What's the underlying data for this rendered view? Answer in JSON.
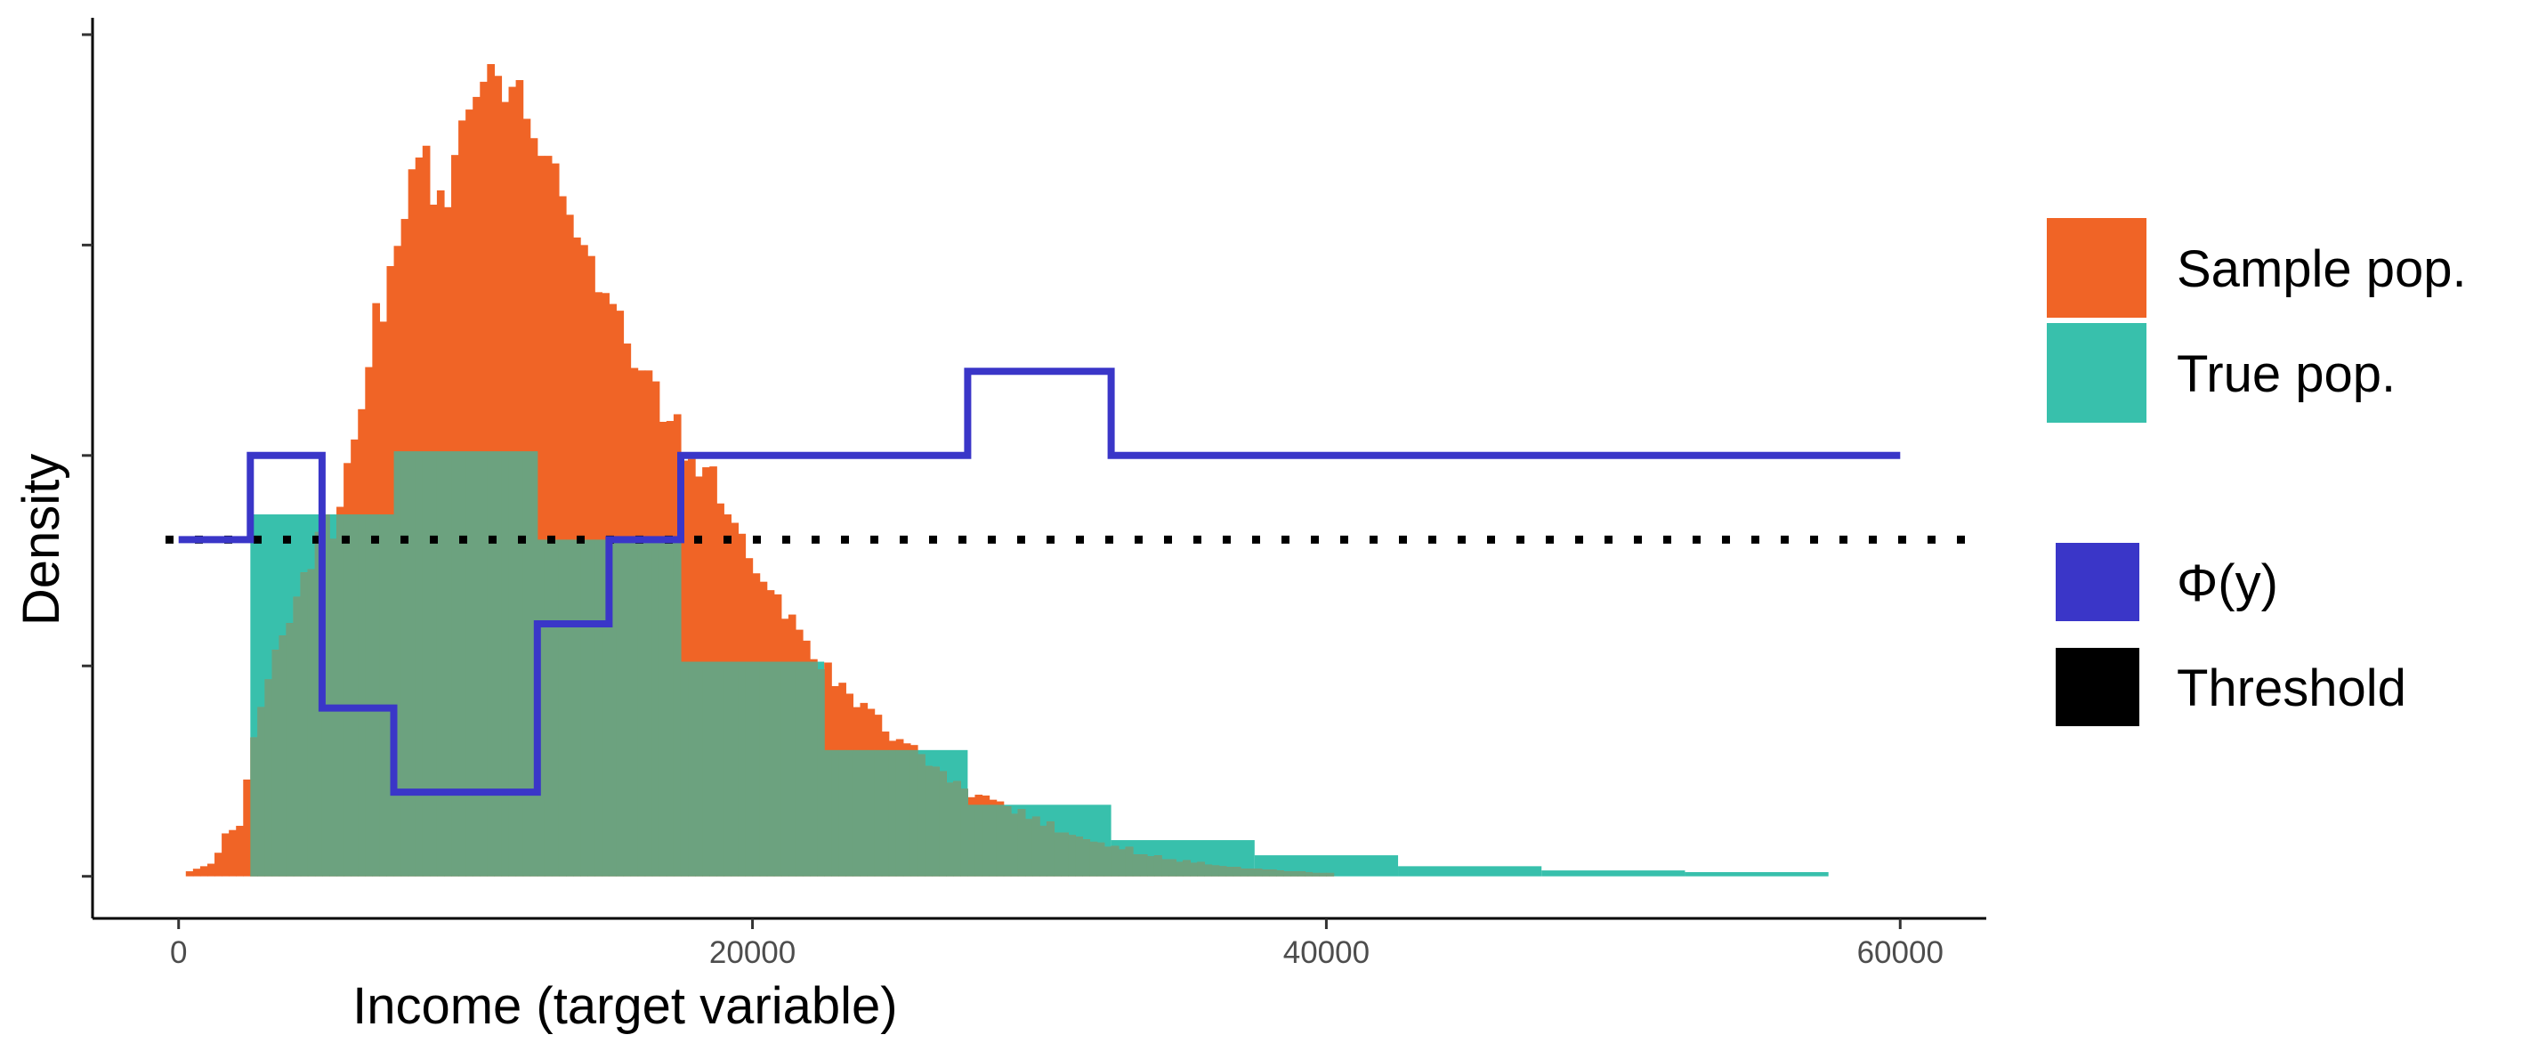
{
  "chart_data": {
    "type": "histogram",
    "xlabel": "Income (target variable)",
    "ylabel": "Density",
    "xlim": [
      -3000,
      63000
    ],
    "ylim": [
      -0.05,
      1.02
    ],
    "x_ticks": [
      0,
      20000,
      40000,
      60000
    ],
    "x_tick_labels": [
      "0",
      "20000",
      "40000",
      "60000"
    ],
    "y_ticks": [
      0,
      0.25,
      0.5,
      0.75,
      1.0
    ],
    "grid": false,
    "legend_position": "right",
    "colors": {
      "sample": "#f06426",
      "true": "#38c0ac",
      "phi": "#3a36c8",
      "threshold": "#000000"
    },
    "sample_hist": {
      "name": "Sample pop.",
      "bin_width": 250,
      "x_start": 250,
      "values": [
        0.006,
        0.009,
        0.012,
        0.015,
        0.028,
        0.051,
        0.055,
        0.06,
        0.115,
        0.165,
        0.201,
        0.234,
        0.269,
        0.286,
        0.301,
        0.332,
        0.361,
        0.365,
        0.409,
        0.43,
        0.401,
        0.439,
        0.491,
        0.519,
        0.555,
        0.605,
        0.681,
        0.659,
        0.725,
        0.749,
        0.781,
        0.84,
        0.854,
        0.868,
        0.798,
        0.815,
        0.795,
        0.857,
        0.898,
        0.911,
        0.926,
        0.944,
        0.965,
        0.951,
        0.92,
        0.938,
        0.946,
        0.9,
        0.877,
        0.856,
        0.856,
        0.847,
        0.808,
        0.786,
        0.759,
        0.75,
        0.737,
        0.694,
        0.693,
        0.68,
        0.672,
        0.633,
        0.604,
        0.601,
        0.601,
        0.588,
        0.54,
        0.541,
        0.549,
        0.494,
        0.496,
        0.475,
        0.486,
        0.487,
        0.443,
        0.43,
        0.42,
        0.407,
        0.378,
        0.36,
        0.35,
        0.34,
        0.335,
        0.306,
        0.311,
        0.293,
        0.28,
        0.258,
        0.246,
        0.254,
        0.226,
        0.23,
        0.217,
        0.201,
        0.206,
        0.199,
        0.192,
        0.172,
        0.161,
        0.163,
        0.158,
        0.156,
        0.145,
        0.131,
        0.13,
        0.125,
        0.111,
        0.113,
        0.104,
        0.094,
        0.097,
        0.096,
        0.091,
        0.089,
        0.083,
        0.074,
        0.08,
        0.068,
        0.071,
        0.06,
        0.065,
        0.052,
        0.052,
        0.049,
        0.047,
        0.044,
        0.041,
        0.04,
        0.035,
        0.036,
        0.032,
        0.035,
        0.026,
        0.026,
        0.024,
        0.025,
        0.02,
        0.02,
        0.017,
        0.019,
        0.016,
        0.017,
        0.014,
        0.013,
        0.012,
        0.011,
        0.011,
        0.009,
        0.009,
        0.009,
        0.008,
        0.008,
        0.007,
        0.006,
        0.006,
        0.006,
        0.005,
        0.004,
        0.004,
        0.004
      ]
    },
    "true_hist": {
      "name": "True pop.",
      "bins": [
        {
          "x0": 2500,
          "x1": 7500,
          "value": 0.43
        },
        {
          "x0": 7500,
          "x1": 12500,
          "value": 0.505
        },
        {
          "x0": 12500,
          "x1": 17500,
          "value": 0.4
        },
        {
          "x0": 17500,
          "x1": 22500,
          "value": 0.255
        },
        {
          "x0": 22500,
          "x1": 27500,
          "value": 0.15
        },
        {
          "x0": 27500,
          "x1": 32500,
          "value": 0.085
        },
        {
          "x0": 32500,
          "x1": 37500,
          "value": 0.043
        },
        {
          "x0": 37500,
          "x1": 42500,
          "value": 0.025
        },
        {
          "x0": 42500,
          "x1": 47500,
          "value": 0.012
        },
        {
          "x0": 47500,
          "x1": 52500,
          "value": 0.007
        },
        {
          "x0": 52500,
          "x1": 57500,
          "value": 0.005
        }
      ]
    },
    "phi_step": {
      "name": "Φ(y)",
      "points": [
        [
          0,
          0.4
        ],
        [
          2500,
          0.4
        ],
        [
          2500,
          0.5
        ],
        [
          5000,
          0.5
        ],
        [
          5000,
          0.2
        ],
        [
          7500,
          0.2
        ],
        [
          7500,
          0.1
        ],
        [
          12500,
          0.1
        ],
        [
          12500,
          0.3
        ],
        [
          15000,
          0.3
        ],
        [
          15000,
          0.4
        ],
        [
          17500,
          0.4
        ],
        [
          17500,
          0.5
        ],
        [
          27500,
          0.5
        ],
        [
          27500,
          0.6
        ],
        [
          32500,
          0.6
        ],
        [
          32500,
          0.5
        ],
        [
          60000,
          0.5
        ]
      ]
    },
    "threshold": {
      "name": "Threshold",
      "y": 0.4
    }
  },
  "legend": {
    "fill_items": [
      {
        "label": "Sample pop.",
        "color": "#f06426"
      },
      {
        "label": "True pop.",
        "color": "#38c0ac"
      }
    ],
    "line_items": [
      {
        "label": "Φ(y)",
        "color": "#3a36c8"
      },
      {
        "label": "Threshold",
        "color": "#000000"
      }
    ]
  }
}
